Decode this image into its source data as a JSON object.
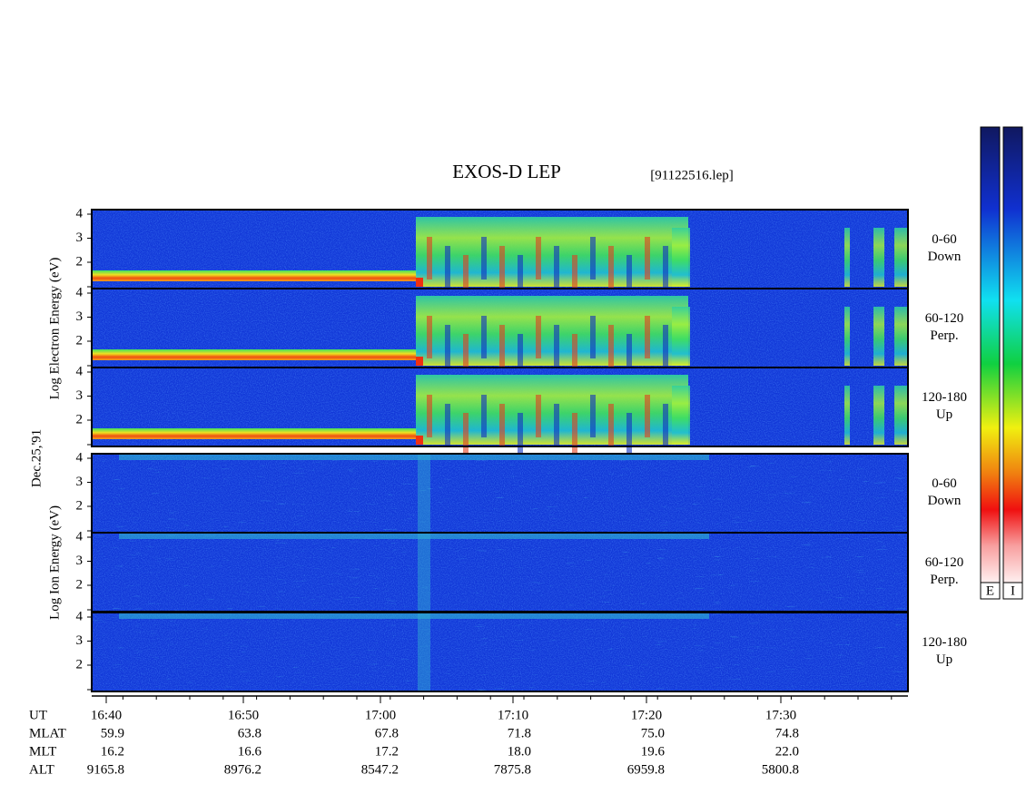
{
  "title": "EXOS-D LEP",
  "file_id": "[91122516.lep]",
  "date": "Dec.25,'91",
  "electron": {
    "axis_label": "Log Electron Energy (eV)",
    "panels": [
      {
        "yticks": [
          "4",
          "3",
          "2"
        ],
        "label": [
          "0-60",
          "Down"
        ]
      },
      {
        "yticks": [
          "4",
          "3",
          "2"
        ],
        "label": [
          "60-120",
          "Perp."
        ]
      },
      {
        "yticks": [
          "4",
          "3",
          "2"
        ],
        "label": [
          "120-180",
          "Up"
        ]
      }
    ]
  },
  "ion": {
    "axis_label": "Log Ion Energy (eV)",
    "panels": [
      {
        "yticks": [
          "4",
          "3",
          "2"
        ],
        "label": [
          "0-60",
          "Down"
        ]
      },
      {
        "yticks": [
          "4",
          "3",
          "2"
        ],
        "label": [
          "60-120",
          "Perp."
        ]
      },
      {
        "yticks": [
          "4",
          "3",
          "2"
        ],
        "label": [
          "120-180",
          "Up"
        ]
      }
    ]
  },
  "time_axis": {
    "name": "UT",
    "ticks": [
      "16:40",
      "16:50",
      "17:00",
      "17:10",
      "17:20",
      "17:30"
    ]
  },
  "ephemeris": {
    "rows": [
      {
        "name": "MLAT",
        "values": [
          "59.9",
          "63.8",
          "67.8",
          "71.8",
          "75.0",
          "74.8"
        ]
      },
      {
        "name": "MLT",
        "values": [
          "16.2",
          "16.6",
          "17.2",
          "18.0",
          "19.6",
          "22.0"
        ]
      },
      {
        "name": "ALT",
        "values": [
          "9165.8",
          "8976.2",
          "8547.2",
          "7875.8",
          "6959.8",
          "5800.8"
        ]
      }
    ]
  },
  "colorbar": {
    "labels": [
      "E",
      "I"
    ]
  }
}
